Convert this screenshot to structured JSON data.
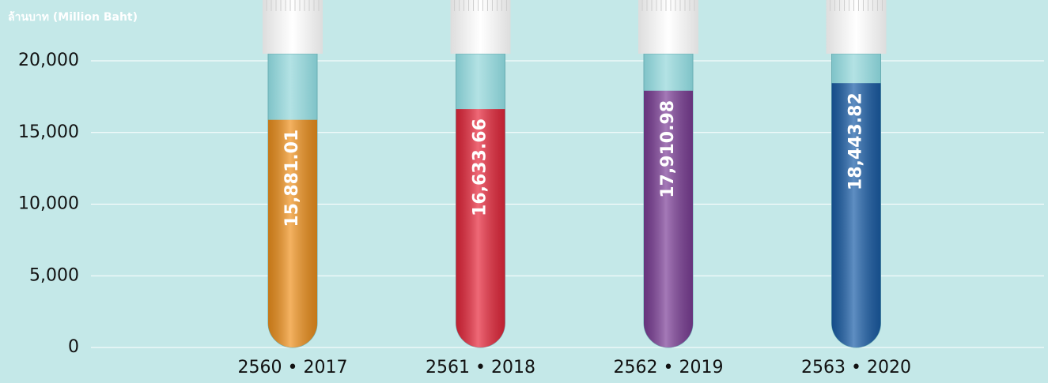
{
  "chart_data": {
    "type": "bar",
    "y_axis_label": "ล้านบาท (Million Baht)",
    "categories": [
      "2560 • 2017",
      "2561 • 2018",
      "2562 • 2019",
      "2563 • 2020"
    ],
    "values": [
      15881.01,
      16633.66,
      17910.98,
      18443.82
    ],
    "value_labels": [
      "15,881.01",
      "16,633.66",
      "17,910.98",
      "18,443.82"
    ],
    "colors": [
      "#f0921e",
      "#e8283c",
      "#7d3f98",
      "#1a5ea8"
    ],
    "ylim": [
      0,
      20000
    ],
    "yticks": [
      0,
      {
        "value": 5000,
        "label": "5,000"
      },
      {
        "value": 10000,
        "label": "10,000"
      },
      {
        "value": 15000,
        "label": "15,000"
      },
      {
        "value": 20000,
        "label": "20,000"
      }
    ],
    "grid": true
  }
}
